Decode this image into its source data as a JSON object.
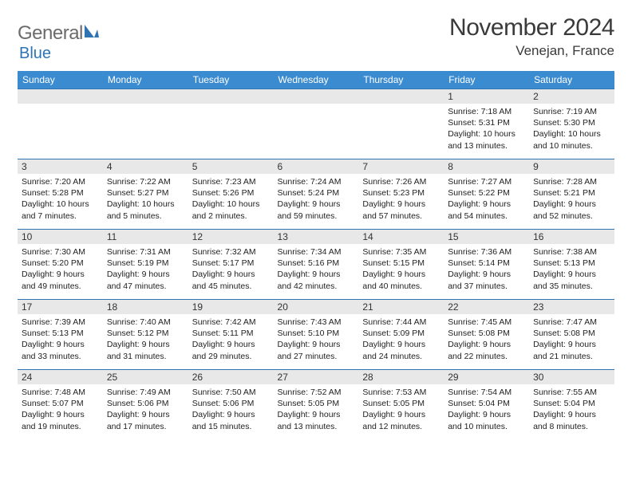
{
  "logo": {
    "word1": "General",
    "word2": "Blue"
  },
  "header": {
    "title": "November 2024",
    "location": "Venejan, France"
  },
  "colors": {
    "header_bg": "#3b8bd0",
    "header_text": "#ffffff",
    "band_bg": "#e8e8e8",
    "rule": "#2e74b5",
    "logo_gray": "#6b6b6b",
    "logo_blue": "#2e74b5",
    "text": "#3a3a3a"
  },
  "day_names": [
    "Sunday",
    "Monday",
    "Tuesday",
    "Wednesday",
    "Thursday",
    "Friday",
    "Saturday"
  ],
  "weeks": [
    [
      null,
      null,
      null,
      null,
      null,
      {
        "n": "1",
        "sr": "Sunrise: 7:18 AM",
        "ss": "Sunset: 5:31 PM",
        "dl": "Daylight: 10 hours and 13 minutes."
      },
      {
        "n": "2",
        "sr": "Sunrise: 7:19 AM",
        "ss": "Sunset: 5:30 PM",
        "dl": "Daylight: 10 hours and 10 minutes."
      }
    ],
    [
      {
        "n": "3",
        "sr": "Sunrise: 7:20 AM",
        "ss": "Sunset: 5:28 PM",
        "dl": "Daylight: 10 hours and 7 minutes."
      },
      {
        "n": "4",
        "sr": "Sunrise: 7:22 AM",
        "ss": "Sunset: 5:27 PM",
        "dl": "Daylight: 10 hours and 5 minutes."
      },
      {
        "n": "5",
        "sr": "Sunrise: 7:23 AM",
        "ss": "Sunset: 5:26 PM",
        "dl": "Daylight: 10 hours and 2 minutes."
      },
      {
        "n": "6",
        "sr": "Sunrise: 7:24 AM",
        "ss": "Sunset: 5:24 PM",
        "dl": "Daylight: 9 hours and 59 minutes."
      },
      {
        "n": "7",
        "sr": "Sunrise: 7:26 AM",
        "ss": "Sunset: 5:23 PM",
        "dl": "Daylight: 9 hours and 57 minutes."
      },
      {
        "n": "8",
        "sr": "Sunrise: 7:27 AM",
        "ss": "Sunset: 5:22 PM",
        "dl": "Daylight: 9 hours and 54 minutes."
      },
      {
        "n": "9",
        "sr": "Sunrise: 7:28 AM",
        "ss": "Sunset: 5:21 PM",
        "dl": "Daylight: 9 hours and 52 minutes."
      }
    ],
    [
      {
        "n": "10",
        "sr": "Sunrise: 7:30 AM",
        "ss": "Sunset: 5:20 PM",
        "dl": "Daylight: 9 hours and 49 minutes."
      },
      {
        "n": "11",
        "sr": "Sunrise: 7:31 AM",
        "ss": "Sunset: 5:19 PM",
        "dl": "Daylight: 9 hours and 47 minutes."
      },
      {
        "n": "12",
        "sr": "Sunrise: 7:32 AM",
        "ss": "Sunset: 5:17 PM",
        "dl": "Daylight: 9 hours and 45 minutes."
      },
      {
        "n": "13",
        "sr": "Sunrise: 7:34 AM",
        "ss": "Sunset: 5:16 PM",
        "dl": "Daylight: 9 hours and 42 minutes."
      },
      {
        "n": "14",
        "sr": "Sunrise: 7:35 AM",
        "ss": "Sunset: 5:15 PM",
        "dl": "Daylight: 9 hours and 40 minutes."
      },
      {
        "n": "15",
        "sr": "Sunrise: 7:36 AM",
        "ss": "Sunset: 5:14 PM",
        "dl": "Daylight: 9 hours and 37 minutes."
      },
      {
        "n": "16",
        "sr": "Sunrise: 7:38 AM",
        "ss": "Sunset: 5:13 PM",
        "dl": "Daylight: 9 hours and 35 minutes."
      }
    ],
    [
      {
        "n": "17",
        "sr": "Sunrise: 7:39 AM",
        "ss": "Sunset: 5:13 PM",
        "dl": "Daylight: 9 hours and 33 minutes."
      },
      {
        "n": "18",
        "sr": "Sunrise: 7:40 AM",
        "ss": "Sunset: 5:12 PM",
        "dl": "Daylight: 9 hours and 31 minutes."
      },
      {
        "n": "19",
        "sr": "Sunrise: 7:42 AM",
        "ss": "Sunset: 5:11 PM",
        "dl": "Daylight: 9 hours and 29 minutes."
      },
      {
        "n": "20",
        "sr": "Sunrise: 7:43 AM",
        "ss": "Sunset: 5:10 PM",
        "dl": "Daylight: 9 hours and 27 minutes."
      },
      {
        "n": "21",
        "sr": "Sunrise: 7:44 AM",
        "ss": "Sunset: 5:09 PM",
        "dl": "Daylight: 9 hours and 24 minutes."
      },
      {
        "n": "22",
        "sr": "Sunrise: 7:45 AM",
        "ss": "Sunset: 5:08 PM",
        "dl": "Daylight: 9 hours and 22 minutes."
      },
      {
        "n": "23",
        "sr": "Sunrise: 7:47 AM",
        "ss": "Sunset: 5:08 PM",
        "dl": "Daylight: 9 hours and 21 minutes."
      }
    ],
    [
      {
        "n": "24",
        "sr": "Sunrise: 7:48 AM",
        "ss": "Sunset: 5:07 PM",
        "dl": "Daylight: 9 hours and 19 minutes."
      },
      {
        "n": "25",
        "sr": "Sunrise: 7:49 AM",
        "ss": "Sunset: 5:06 PM",
        "dl": "Daylight: 9 hours and 17 minutes."
      },
      {
        "n": "26",
        "sr": "Sunrise: 7:50 AM",
        "ss": "Sunset: 5:06 PM",
        "dl": "Daylight: 9 hours and 15 minutes."
      },
      {
        "n": "27",
        "sr": "Sunrise: 7:52 AM",
        "ss": "Sunset: 5:05 PM",
        "dl": "Daylight: 9 hours and 13 minutes."
      },
      {
        "n": "28",
        "sr": "Sunrise: 7:53 AM",
        "ss": "Sunset: 5:05 PM",
        "dl": "Daylight: 9 hours and 12 minutes."
      },
      {
        "n": "29",
        "sr": "Sunrise: 7:54 AM",
        "ss": "Sunset: 5:04 PM",
        "dl": "Daylight: 9 hours and 10 minutes."
      },
      {
        "n": "30",
        "sr": "Sunrise: 7:55 AM",
        "ss": "Sunset: 5:04 PM",
        "dl": "Daylight: 9 hours and 8 minutes."
      }
    ]
  ]
}
